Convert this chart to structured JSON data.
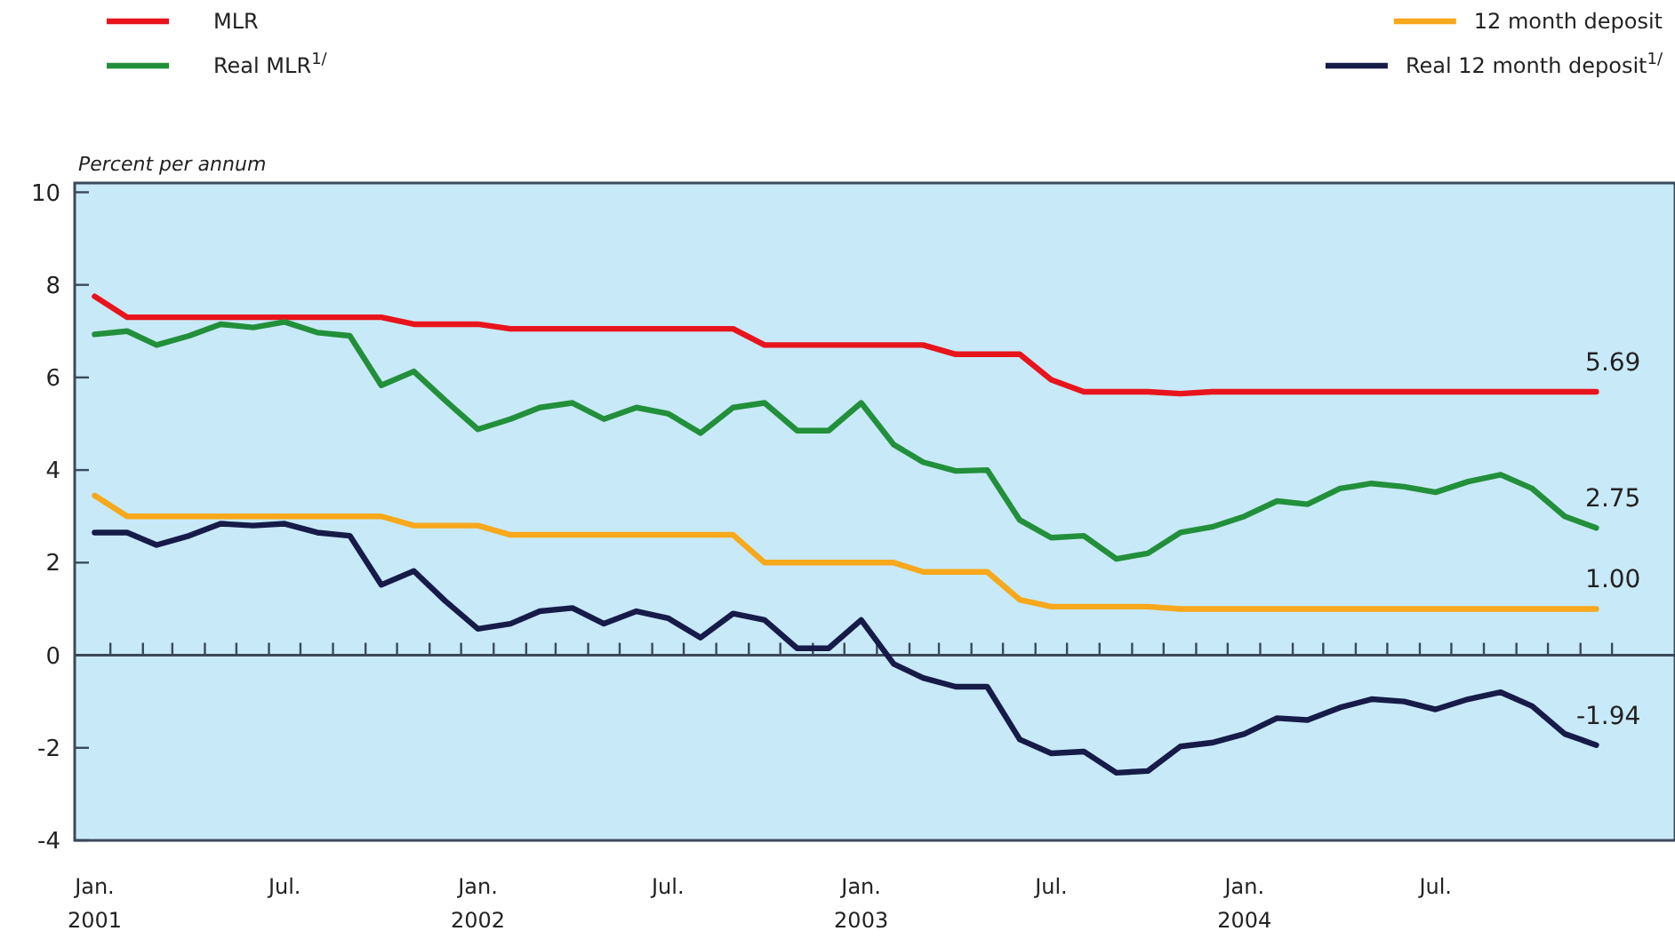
{
  "chart_data": {
    "type": "line",
    "ylabel": "Percent per annum",
    "legend": "top",
    "line_style": "solid",
    "marker": "none",
    "grid": false,
    "x": [
      "2001-01",
      "2001-02",
      "2001-03",
      "2001-04",
      "2001-05",
      "2001-06",
      "2001-07",
      "2001-08",
      "2001-09",
      "2001-10",
      "2001-11",
      "2001-12",
      "2002-01",
      "2002-02",
      "2002-03",
      "2002-04",
      "2002-05",
      "2002-06",
      "2002-07",
      "2002-08",
      "2002-09",
      "2002-10",
      "2002-11",
      "2002-12",
      "2003-01",
      "2003-02",
      "2003-03",
      "2003-04",
      "2003-05",
      "2003-06",
      "2003-07",
      "2003-08",
      "2003-09",
      "2003-10",
      "2003-11",
      "2003-12",
      "2004-01",
      "2004-02",
      "2004-03",
      "2004-04",
      "2004-05",
      "2004-06",
      "2004-07",
      "2004-08",
      "2004-09",
      "2004-10",
      "2004-11",
      "2004-12"
    ],
    "xlim": [
      "2000-12-13",
      "2005-02-14"
    ],
    "xticks": [
      {
        "value": "2001-01",
        "label": "Jan.\n2001"
      },
      {
        "value": "2001-07",
        "label": "Jul."
      },
      {
        "value": "2002-01",
        "label": "Jan.\n2002"
      },
      {
        "value": "2002-07",
        "label": "Jul."
      },
      {
        "value": "2003-01",
        "label": "Jan.\n2003"
      },
      {
        "value": "2003-07",
        "label": "Jul."
      },
      {
        "value": "2004-01",
        "label": "Jan.\n2004"
      },
      {
        "value": "2004-07",
        "label": "Jul."
      },
      {
        "value": "2001-01-16",
        "label": null
      },
      {
        "value": "2001-02-16",
        "label": null
      },
      {
        "value": "2001-03-16",
        "label": null
      },
      {
        "value": "2001-04-16",
        "label": null
      },
      {
        "value": "2001-05-16",
        "label": null
      },
      {
        "value": "2001-06-16",
        "label": null
      },
      {
        "value": "2001-07-16",
        "label": null
      },
      {
        "value": "2001-08-16",
        "label": null
      },
      {
        "value": "2001-09-16",
        "label": null
      },
      {
        "value": "2001-10-16",
        "label": null
      },
      {
        "value": "2001-11-16",
        "label": null
      },
      {
        "value": "2001-12-16",
        "label": null
      },
      {
        "value": "2002-01-16",
        "label": null
      },
      {
        "value": "2002-02-16",
        "label": null
      },
      {
        "value": "2002-03-16",
        "label": null
      },
      {
        "value": "2002-04-16",
        "label": null
      },
      {
        "value": "2002-05-16",
        "label": null
      },
      {
        "value": "2002-06-16",
        "label": null
      },
      {
        "value": "2002-07-16",
        "label": null
      },
      {
        "value": "2002-08-16",
        "label": null
      },
      {
        "value": "2002-09-16",
        "label": null
      },
      {
        "value": "2002-10-16",
        "label": null
      },
      {
        "value": "2002-11-16",
        "label": null
      },
      {
        "value": "2002-12-16",
        "label": null
      },
      {
        "value": "2003-01-16",
        "label": null
      },
      {
        "value": "2003-02-16",
        "label": null
      },
      {
        "value": "2003-03-16",
        "label": null
      },
      {
        "value": "2003-04-16",
        "label": null
      },
      {
        "value": "2003-05-16",
        "label": null
      },
      {
        "value": "2003-06-16",
        "label": null
      },
      {
        "value": "2003-07-16",
        "label": null
      },
      {
        "value": "2003-08-16",
        "label": null
      },
      {
        "value": "2003-09-16",
        "label": null
      },
      {
        "value": "2003-10-16",
        "label": null
      },
      {
        "value": "2003-11-16",
        "label": null
      },
      {
        "value": "2003-12-16",
        "label": null
      },
      {
        "value": "2004-01-16",
        "label": null
      },
      {
        "value": "2004-02-16",
        "label": null
      },
      {
        "value": "2004-03-16",
        "label": null
      },
      {
        "value": "2004-04-16",
        "label": null
      },
      {
        "value": "2004-05-16",
        "label": null
      },
      {
        "value": "2004-06-16",
        "label": null
      },
      {
        "value": "2004-07-16",
        "label": null
      },
      {
        "value": "2004-08-16",
        "label": null
      },
      {
        "value": "2004-09-16",
        "label": null
      },
      {
        "value": "2004-10-16",
        "label": null
      },
      {
        "value": "2004-11-16",
        "label": null
      },
      {
        "value": "2004-12-16",
        "label": null
      }
    ],
    "ref_lines": [
      {
        "axis": "y",
        "value": 0,
        "color": "#3b4a5a"
      }
    ],
    "ylim": [
      -4,
      10.2
    ],
    "yticks": [
      -4,
      -2,
      0,
      2,
      4,
      6,
      8,
      10
    ],
    "series": [
      {
        "name": "MLR",
        "color": "#e8141c",
        "values": [
          7.75,
          7.3,
          7.3,
          7.3,
          7.3,
          7.3,
          7.3,
          7.3,
          7.3,
          7.3,
          7.15,
          7.15,
          7.15,
          7.05,
          7.05,
          7.05,
          7.05,
          7.05,
          7.05,
          7.05,
          7.05,
          6.7,
          6.7,
          6.7,
          6.7,
          6.7,
          6.7,
          6.5,
          6.5,
          6.5,
          5.95,
          5.69,
          5.69,
          5.69,
          5.65,
          5.69,
          5.69,
          5.69,
          5.69,
          5.69,
          5.69,
          5.69,
          5.69,
          5.69,
          5.69,
          5.69,
          5.69,
          5.69
        ],
        "value_labels": [
          null,
          null,
          null,
          null,
          null,
          null,
          null,
          null,
          null,
          null,
          null,
          null,
          null,
          null,
          null,
          null,
          null,
          null,
          null,
          null,
          null,
          null,
          null,
          null,
          null,
          null,
          null,
          null,
          null,
          null,
          null,
          null,
          null,
          null,
          null,
          null,
          null,
          null,
          null,
          null,
          null,
          null,
          null,
          null,
          null,
          null,
          null,
          "5.69"
        ]
      },
      {
        "name": "Real MLR$^{1/}$",
        "color": "#22903a",
        "values": [
          6.93,
          7.0,
          6.7,
          6.9,
          7.15,
          7.08,
          7.2,
          6.97,
          6.9,
          5.83,
          6.13,
          5.5,
          4.88,
          5.1,
          5.35,
          5.45,
          5.1,
          5.35,
          5.22,
          4.8,
          5.35,
          5.45,
          4.85,
          4.85,
          5.45,
          4.55,
          4.17,
          3.98,
          4.0,
          2.92,
          2.54,
          2.58,
          2.08,
          2.2,
          2.65,
          2.77,
          3.0,
          3.33,
          3.26,
          3.6,
          3.71,
          3.64,
          3.52,
          3.75,
          3.9,
          3.6,
          3.0,
          2.75
        ],
        "value_labels": [
          null,
          null,
          null,
          null,
          null,
          null,
          null,
          null,
          null,
          null,
          null,
          null,
          null,
          null,
          null,
          null,
          null,
          null,
          null,
          null,
          null,
          null,
          null,
          null,
          null,
          null,
          null,
          null,
          null,
          null,
          null,
          null,
          null,
          null,
          null,
          null,
          null,
          null,
          null,
          null,
          null,
          null,
          null,
          null,
          null,
          null,
          null,
          "2.75"
        ]
      },
      {
        "name": "12 month deposit",
        "color": "#f7a81b",
        "values": [
          3.45,
          3.0,
          3.0,
          3.0,
          3.0,
          3.0,
          3.0,
          3.0,
          3.0,
          3.0,
          2.8,
          2.8,
          2.8,
          2.6,
          2.6,
          2.6,
          2.6,
          2.6,
          2.6,
          2.6,
          2.6,
          2.0,
          2.0,
          2.0,
          2.0,
          2.0,
          1.8,
          1.8,
          1.8,
          1.2,
          1.05,
          1.05,
          1.05,
          1.05,
          1.0,
          1.0,
          1.0,
          1.0,
          1.0,
          1.0,
          1.0,
          1.0,
          1.0,
          1.0,
          1.0,
          1.0,
          1.0,
          1.0
        ],
        "value_labels": [
          null,
          null,
          null,
          null,
          null,
          null,
          null,
          null,
          null,
          null,
          null,
          null,
          null,
          null,
          null,
          null,
          null,
          null,
          null,
          null,
          null,
          null,
          null,
          null,
          null,
          null,
          null,
          null,
          null,
          null,
          null,
          null,
          null,
          null,
          null,
          null,
          null,
          null,
          null,
          null,
          null,
          null,
          null,
          null,
          null,
          null,
          null,
          "1.00"
        ]
      },
      {
        "name": "Real 12 month deposit$^{1/}$",
        "color": "#161b48",
        "values": [
          2.65,
          2.65,
          2.38,
          2.58,
          2.84,
          2.8,
          2.84,
          2.65,
          2.58,
          1.52,
          1.82,
          1.17,
          0.57,
          0.68,
          0.95,
          1.02,
          0.68,
          0.95,
          0.8,
          0.38,
          0.9,
          0.76,
          0.15,
          0.15,
          0.76,
          -0.19,
          -0.49,
          -0.68,
          -0.68,
          -1.82,
          -2.12,
          -2.08,
          -2.54,
          -2.5,
          -1.97,
          -1.89,
          -1.7,
          -1.36,
          -1.4,
          -1.13,
          -0.95,
          -1.0,
          -1.17,
          -0.95,
          -0.8,
          -1.1,
          -1.7,
          -1.94
        ],
        "value_labels": [
          null,
          null,
          null,
          null,
          null,
          null,
          null,
          null,
          null,
          null,
          null,
          null,
          null,
          null,
          null,
          null,
          null,
          null,
          null,
          null,
          null,
          null,
          null,
          null,
          null,
          null,
          null,
          null,
          null,
          null,
          null,
          null,
          null,
          null,
          null,
          null,
          null,
          null,
          null,
          null,
          null,
          null,
          null,
          null,
          null,
          null,
          null,
          "-1.94"
        ]
      }
    ]
  }
}
